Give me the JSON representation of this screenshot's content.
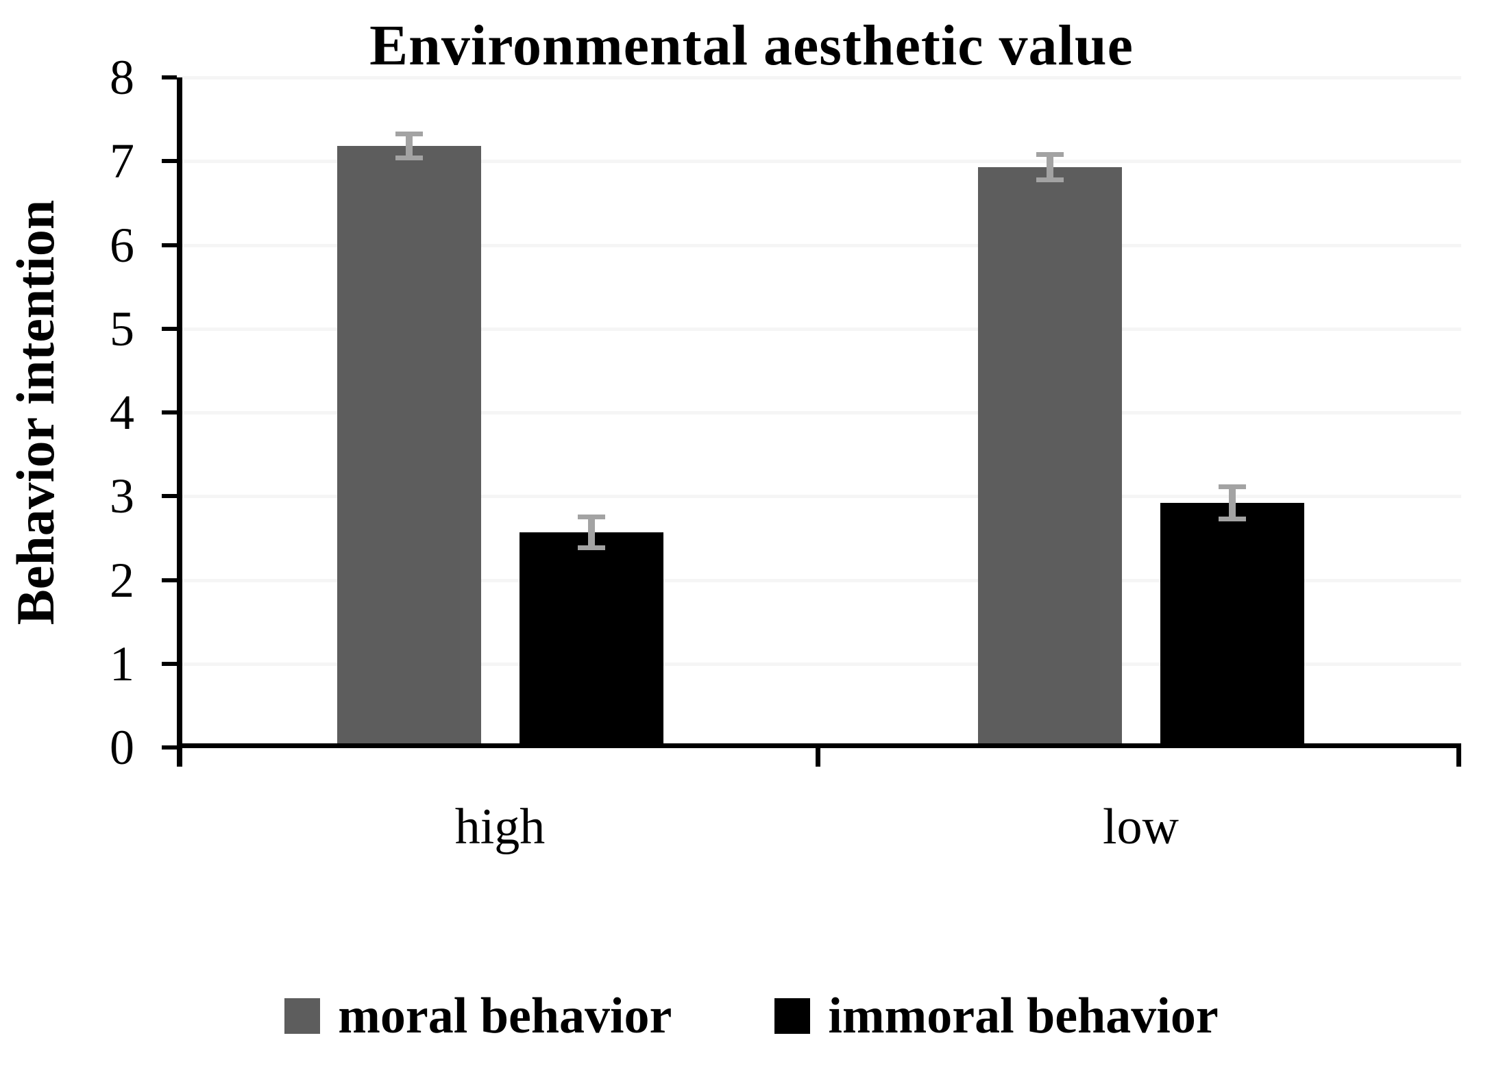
{
  "chart_data": {
    "type": "bar",
    "title": "Environmental aesthetic value",
    "xlabel": "",
    "ylabel": "Behavior intention",
    "categories": [
      "high",
      "low"
    ],
    "series": [
      {
        "name": "moral behavior",
        "color": "#5d5d5d",
        "values": [
          7.18,
          6.93
        ],
        "errors": [
          0.13,
          0.14
        ]
      },
      {
        "name": "immoral behavior",
        "color": "#000000",
        "values": [
          2.57,
          2.92
        ],
        "errors": [
          0.17,
          0.18
        ]
      }
    ],
    "ylim": [
      0,
      8
    ],
    "yticks": [
      0,
      1,
      2,
      3,
      4,
      5,
      6,
      7,
      8
    ],
    "grid": true,
    "gridline_color": "#f5f5f5",
    "error_bar_color": "#a3a3a3",
    "axis_color": "#000000",
    "legend_position": "bottom"
  }
}
